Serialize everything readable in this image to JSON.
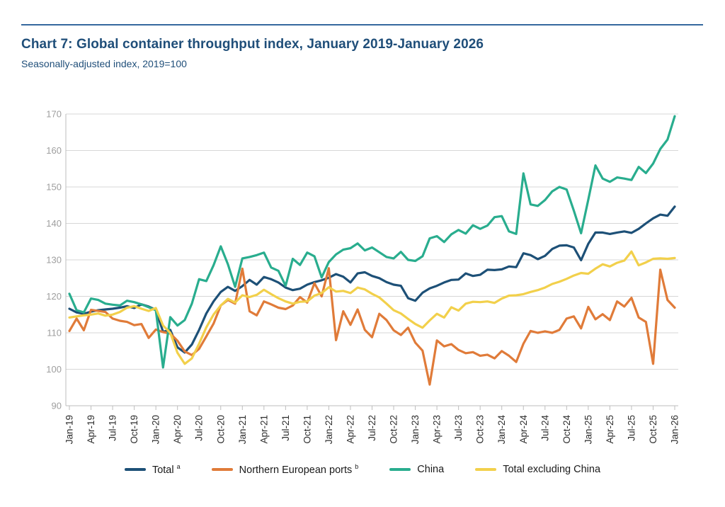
{
  "header": {
    "title": "Chart 7: Global container throughput index, January 2019-January 2026",
    "subtitle": "Seasonally-adjusted index, 2019=100"
  },
  "colors": {
    "title_navy": "#1f4e79",
    "rule_blue": "#35689e",
    "gridline": "#d7d7d7",
    "axis": "#bdbdbd",
    "y_tick_text": "#9e9e9e",
    "x_tick_text": "#2e2e2e"
  },
  "chart_data": {
    "type": "line",
    "title": "Chart 7: Global container throughput index, January 2019-January 2026",
    "subtitle": "Seasonally-adjusted index, 2019=100",
    "x_start": "Jan-19",
    "x_end": "Jan-26",
    "months_count": 85,
    "x_tick_every_n_months": 3,
    "x_tick_labels": [
      "Jan-19",
      "Apr-19",
      "Jul-19",
      "Oct-19",
      "Jan-20",
      "Apr-20",
      "Jul-20",
      "Oct-20",
      "Jan-21",
      "Apr-21",
      "Jul-21",
      "Oct-21",
      "Jan-22",
      "Apr-22",
      "Jul-22",
      "Oct-22",
      "Jan-23",
      "Apr-23",
      "Jul-23",
      "Oct-23",
      "Jan-24",
      "Apr-24",
      "Jul-24",
      "Oct-24",
      "Jan-25",
      "Apr-25",
      "Jul-25",
      "Oct-25",
      "Jan-26"
    ],
    "ylim": [
      90,
      170
    ],
    "y_ticks": [
      90,
      100,
      110,
      120,
      130,
      140,
      150,
      160,
      170
    ],
    "grid": "horizontal",
    "legend_position": "bottom",
    "series": [
      {
        "name": "Total",
        "sup": "a",
        "color": "#1d5077",
        "values": [
          116.6,
          115.6,
          115.2,
          115.8,
          116.2,
          116.4,
          116.6,
          116.9,
          117.3,
          116.8,
          117.8,
          117.2,
          116.3,
          110.3,
          110.8,
          106.0,
          104.6,
          106.8,
          110.8,
          115.3,
          118.6,
          121.2,
          122.6,
          121.5,
          122.8,
          124.5,
          123.2,
          125.3,
          124.7,
          123.8,
          122.4,
          121.7,
          122.1,
          123.2,
          123.9,
          124.4,
          125.1,
          126.1,
          125.4,
          123.8,
          126.3,
          126.6,
          125.6,
          125.0,
          123.9,
          123.2,
          122.9,
          119.5,
          118.8,
          121.0,
          122.2,
          122.9,
          123.8,
          124.5,
          124.6,
          126.3,
          125.6,
          125.9,
          127.3,
          127.2,
          127.4,
          128.2,
          128.0,
          131.8,
          131.3,
          130.2,
          131.1,
          133.0,
          133.9,
          134.0,
          133.4,
          129.9,
          134.4,
          137.5,
          137.5,
          137.1,
          137.5,
          137.8,
          137.4,
          138.5,
          140.0,
          141.4,
          142.4,
          142.1,
          144.6
        ]
      },
      {
        "name": "Northern European ports",
        "sup": "b",
        "color": "#e07b39",
        "values": [
          110.5,
          113.9,
          110.7,
          116.3,
          116.0,
          115.7,
          113.9,
          113.3,
          113.0,
          112.1,
          112.4,
          108.6,
          110.9,
          110.2,
          109.8,
          107.8,
          104.9,
          103.9,
          105.6,
          109.0,
          112.5,
          117.5,
          119.0,
          118.0,
          127.6,
          115.9,
          114.8,
          118.6,
          117.8,
          116.9,
          116.5,
          117.5,
          119.8,
          118.3,
          123.6,
          120.0,
          127.7,
          108.0,
          115.9,
          112.2,
          116.4,
          110.8,
          108.8,
          115.2,
          113.5,
          110.7,
          109.4,
          111.4,
          107.3,
          105.1,
          95.8,
          107.9,
          106.3,
          106.9,
          105.3,
          104.4,
          104.7,
          103.7,
          104.0,
          103.0,
          105.0,
          103.7,
          102.0,
          107.0,
          110.5,
          110.0,
          110.4,
          110.0,
          110.8,
          113.9,
          114.5,
          111.2,
          117.1,
          113.7,
          115.1,
          113.5,
          118.6,
          117.2,
          119.6,
          114.2,
          113.0,
          101.5,
          127.3,
          119.0,
          116.9
        ]
      },
      {
        "name": "China",
        "sup": "",
        "color": "#29ad8e",
        "values": [
          120.7,
          116.2,
          115.6,
          119.4,
          119.0,
          118.0,
          117.7,
          117.5,
          118.8,
          118.4,
          117.8,
          117.0,
          116.2,
          100.5,
          114.3,
          112.0,
          113.5,
          118.0,
          124.7,
          124.2,
          128.5,
          133.7,
          128.8,
          122.6,
          130.4,
          130.8,
          131.3,
          132.0,
          127.9,
          127.0,
          122.9,
          130.3,
          128.6,
          132.0,
          131.0,
          125.2,
          129.4,
          131.5,
          132.8,
          133.2,
          134.5,
          132.6,
          133.4,
          132.1,
          130.8,
          130.4,
          132.2,
          130.0,
          129.7,
          131.0,
          135.9,
          136.5,
          134.9,
          137.0,
          138.2,
          137.2,
          139.5,
          138.5,
          139.4,
          141.7,
          142.0,
          137.8,
          137.1,
          153.7,
          145.2,
          144.8,
          146.4,
          148.8,
          150.0,
          149.3,
          143.5,
          137.3,
          146.5,
          155.9,
          152.3,
          151.4,
          152.6,
          152.3,
          151.9,
          155.5,
          153.8,
          156.4,
          160.4,
          163.0,
          169.4
        ]
      },
      {
        "name": "Total excluding China",
        "sup": "",
        "color": "#f2d04b",
        "values": [
          114.2,
          114.5,
          114.8,
          115.0,
          115.3,
          114.7,
          115.0,
          115.7,
          116.9,
          117.3,
          116.6,
          116.0,
          116.8,
          112.0,
          110.0,
          104.5,
          101.5,
          103.0,
          107.0,
          111.5,
          115.0,
          117.5,
          119.3,
          118.3,
          120.3,
          119.8,
          120.4,
          121.8,
          120.6,
          119.5,
          118.6,
          118.0,
          118.5,
          118.6,
          120.2,
          120.9,
          122.5,
          121.3,
          121.5,
          120.9,
          122.4,
          121.9,
          120.7,
          119.7,
          118.0,
          116.2,
          115.3,
          113.8,
          112.4,
          111.4,
          113.4,
          115.2,
          114.2,
          117.0,
          116.1,
          118.0,
          118.5,
          118.4,
          118.6,
          118.2,
          119.4,
          120.2,
          120.3,
          120.6,
          121.2,
          121.7,
          122.4,
          123.4,
          124.0,
          124.8,
          125.7,
          126.4,
          126.2,
          127.6,
          128.8,
          128.2,
          129.2,
          129.8,
          132.3,
          128.5,
          129.3,
          130.3,
          130.4,
          130.3,
          130.5
        ]
      }
    ]
  }
}
